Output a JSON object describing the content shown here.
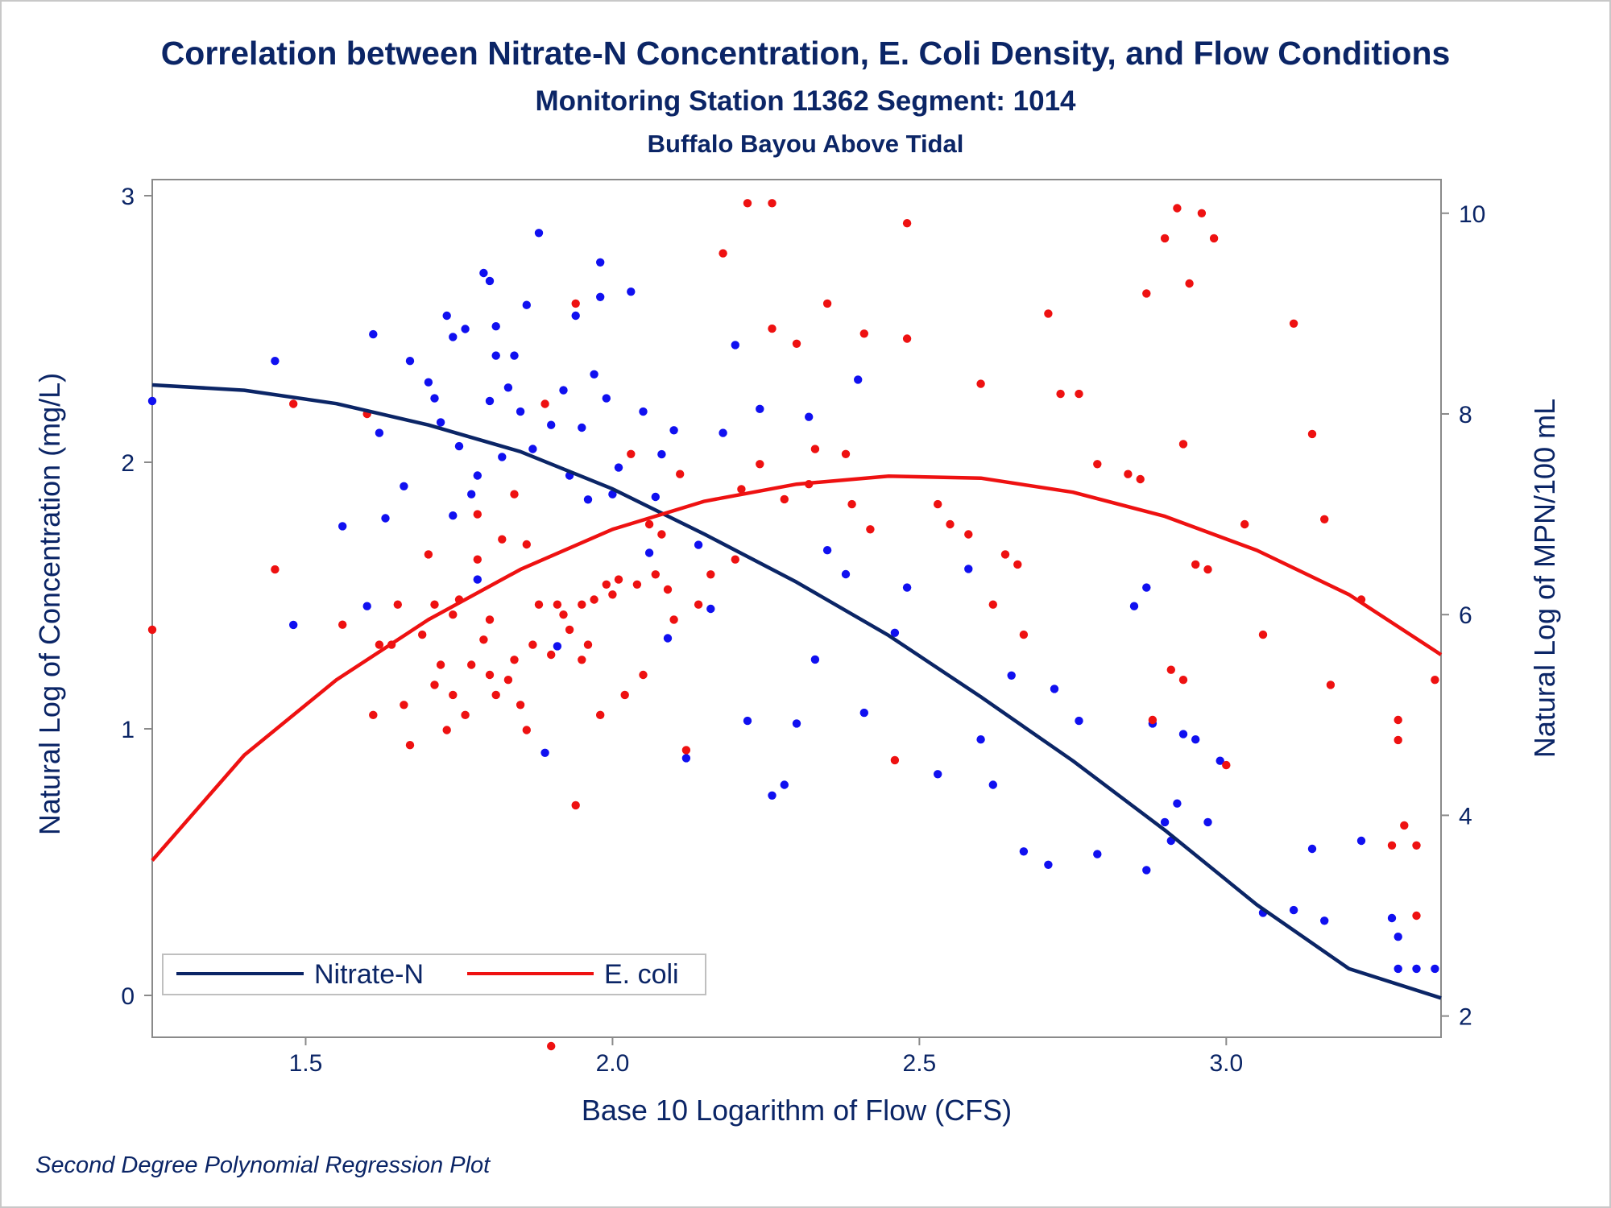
{
  "colors": {
    "nitrate": "#0b2566",
    "nitrate_points": "#1010f0",
    "ecoli": "#ee1111",
    "text": "#0b2566",
    "axis": "#8a8a8a"
  },
  "chart_data": {
    "type": "scatter",
    "title": "Correlation between Nitrate-N Concentration, E. Coli Density, and Flow Conditions",
    "subtitle": "Monitoring Station 11362 Segment: 1014",
    "subtitle2": "Buffalo Bayou Above Tidal",
    "footnote": "Second Degree Polynomial Regression Plot",
    "xlabel": "Base 10 Logarithm of Flow (CFS)",
    "ylabel": "Natural Log of Concentration (mg/L)",
    "y2label": "Natural Log of MPN/100 mL",
    "xlim": [
      1.25,
      3.35
    ],
    "ylim": [
      0,
      3
    ],
    "y2lim": [
      1.7,
      10.6
    ],
    "xticks": [
      "1.5",
      "2.0",
      "2.5",
      "3.0"
    ],
    "yticks": [
      "0",
      "1",
      "2",
      "3"
    ],
    "y2ticks": [
      "2",
      "4",
      "6",
      "8",
      "10"
    ],
    "grid": false,
    "legend_position": "bottom-left",
    "series": [
      {
        "name": "Nitrate-N",
        "axis": "left",
        "fit": [
          [
            1.25,
            2.29
          ],
          [
            1.4,
            2.27
          ],
          [
            1.55,
            2.22
          ],
          [
            1.7,
            2.14
          ],
          [
            1.85,
            2.04
          ],
          [
            2.0,
            1.9
          ],
          [
            2.15,
            1.73
          ],
          [
            2.3,
            1.55
          ],
          [
            2.45,
            1.35
          ],
          [
            2.6,
            1.12
          ],
          [
            2.75,
            0.88
          ],
          [
            2.9,
            0.62
          ],
          [
            3.05,
            0.34
          ],
          [
            3.2,
            0.1
          ],
          [
            3.35,
            -0.01
          ]
        ],
        "points": [
          [
            1.25,
            2.23
          ],
          [
            1.45,
            2.38
          ],
          [
            1.48,
            1.39
          ],
          [
            1.56,
            1.76
          ],
          [
            1.6,
            1.46
          ],
          [
            1.61,
            2.48
          ],
          [
            1.62,
            2.11
          ],
          [
            1.63,
            1.79
          ],
          [
            1.66,
            1.91
          ],
          [
            1.67,
            2.38
          ],
          [
            1.7,
            2.3
          ],
          [
            1.71,
            2.24
          ],
          [
            1.72,
            2.15
          ],
          [
            1.73,
            2.55
          ],
          [
            1.74,
            1.8
          ],
          [
            1.74,
            2.47
          ],
          [
            1.75,
            2.06
          ],
          [
            1.76,
            2.5
          ],
          [
            1.77,
            1.88
          ],
          [
            1.78,
            1.56
          ],
          [
            1.78,
            1.95
          ],
          [
            1.79,
            2.71
          ],
          [
            1.8,
            2.68
          ],
          [
            1.8,
            2.23
          ],
          [
            1.81,
            2.51
          ],
          [
            1.81,
            2.4
          ],
          [
            1.82,
            2.02
          ],
          [
            1.83,
            2.28
          ],
          [
            1.84,
            2.4
          ],
          [
            1.85,
            2.19
          ],
          [
            1.86,
            2.59
          ],
          [
            1.87,
            2.05
          ],
          [
            1.88,
            2.86
          ],
          [
            1.89,
            0.91
          ],
          [
            1.9,
            2.14
          ],
          [
            1.91,
            1.31
          ],
          [
            1.92,
            2.27
          ],
          [
            1.93,
            1.95
          ],
          [
            1.94,
            2.55
          ],
          [
            1.95,
            2.13
          ],
          [
            1.96,
            1.86
          ],
          [
            1.97,
            2.33
          ],
          [
            1.98,
            2.75
          ],
          [
            1.98,
            2.62
          ],
          [
            1.99,
            2.24
          ],
          [
            2.0,
            1.88
          ],
          [
            2.01,
            1.98
          ],
          [
            2.03,
            2.64
          ],
          [
            2.05,
            2.19
          ],
          [
            2.06,
            1.66
          ],
          [
            2.07,
            1.87
          ],
          [
            2.08,
            2.03
          ],
          [
            2.09,
            1.34
          ],
          [
            2.1,
            2.12
          ],
          [
            2.12,
            0.89
          ],
          [
            2.14,
            1.69
          ],
          [
            2.16,
            1.45
          ],
          [
            2.18,
            2.11
          ],
          [
            2.2,
            2.44
          ],
          [
            2.22,
            1.03
          ],
          [
            2.24,
            2.2
          ],
          [
            2.26,
            0.75
          ],
          [
            2.28,
            0.79
          ],
          [
            2.3,
            1.02
          ],
          [
            2.32,
            2.17
          ],
          [
            2.33,
            1.26
          ],
          [
            2.35,
            1.67
          ],
          [
            2.38,
            1.58
          ],
          [
            2.41,
            1.06
          ],
          [
            2.4,
            2.31
          ],
          [
            2.46,
            1.36
          ],
          [
            2.48,
            1.53
          ],
          [
            2.53,
            0.83
          ],
          [
            2.58,
            1.6
          ],
          [
            2.6,
            0.96
          ],
          [
            2.62,
            0.79
          ],
          [
            2.65,
            1.2
          ],
          [
            2.67,
            0.54
          ],
          [
            2.71,
            0.49
          ],
          [
            2.72,
            1.15
          ],
          [
            2.76,
            1.03
          ],
          [
            2.79,
            0.53
          ],
          [
            2.85,
            1.46
          ],
          [
            2.87,
            1.53
          ],
          [
            2.87,
            0.47
          ],
          [
            2.88,
            1.02
          ],
          [
            2.9,
            0.65
          ],
          [
            2.91,
            0.58
          ],
          [
            2.92,
            0.72
          ],
          [
            2.93,
            0.98
          ],
          [
            2.95,
            0.96
          ],
          [
            2.97,
            0.65
          ],
          [
            2.99,
            0.88
          ],
          [
            3.06,
            0.31
          ],
          [
            3.11,
            0.32
          ],
          [
            3.14,
            0.55
          ],
          [
            3.16,
            0.28
          ],
          [
            3.22,
            0.58
          ],
          [
            3.27,
            0.29
          ],
          [
            3.28,
            0.22
          ],
          [
            3.28,
            0.1
          ],
          [
            3.31,
            0.1
          ],
          [
            3.34,
            0.1
          ]
        ]
      },
      {
        "name": "E. coli",
        "axis": "right",
        "fit": [
          [
            1.25,
            3.55
          ],
          [
            1.4,
            4.6
          ],
          [
            1.55,
            5.35
          ],
          [
            1.7,
            5.95
          ],
          [
            1.85,
            6.45
          ],
          [
            2.0,
            6.85
          ],
          [
            2.15,
            7.13
          ],
          [
            2.3,
            7.3
          ],
          [
            2.45,
            7.38
          ],
          [
            2.6,
            7.36
          ],
          [
            2.75,
            7.22
          ],
          [
            2.9,
            6.98
          ],
          [
            3.05,
            6.64
          ],
          [
            3.2,
            6.2
          ],
          [
            3.35,
            5.6
          ]
        ],
        "points": [
          [
            1.25,
            5.85
          ],
          [
            1.45,
            6.45
          ],
          [
            1.48,
            8.1
          ],
          [
            1.56,
            5.9
          ],
          [
            1.6,
            8.0
          ],
          [
            1.61,
            5.0
          ],
          [
            1.62,
            5.7
          ],
          [
            1.64,
            5.7
          ],
          [
            1.65,
            6.1
          ],
          [
            1.66,
            5.1
          ],
          [
            1.67,
            4.7
          ],
          [
            1.69,
            5.8
          ],
          [
            1.7,
            6.6
          ],
          [
            1.71,
            6.1
          ],
          [
            1.71,
            5.3
          ],
          [
            1.72,
            5.5
          ],
          [
            1.73,
            4.85
          ],
          [
            1.74,
            6.0
          ],
          [
            1.74,
            5.2
          ],
          [
            1.75,
            6.15
          ],
          [
            1.76,
            5.0
          ],
          [
            1.77,
            5.5
          ],
          [
            1.78,
            6.55
          ],
          [
            1.78,
            7.0
          ],
          [
            1.79,
            5.75
          ],
          [
            1.8,
            5.95
          ],
          [
            1.8,
            5.4
          ],
          [
            1.81,
            5.2
          ],
          [
            1.82,
            6.75
          ],
          [
            1.83,
            5.35
          ],
          [
            1.84,
            5.55
          ],
          [
            1.84,
            7.2
          ],
          [
            1.85,
            5.1
          ],
          [
            1.86,
            4.85
          ],
          [
            1.86,
            6.7
          ],
          [
            1.87,
            5.7
          ],
          [
            1.88,
            6.1
          ],
          [
            1.89,
            8.1
          ],
          [
            1.9,
            5.6
          ],
          [
            1.91,
            6.1
          ],
          [
            1.92,
            6.0
          ],
          [
            1.93,
            5.85
          ],
          [
            1.94,
            4.1
          ],
          [
            1.94,
            9.1
          ],
          [
            1.95,
            5.55
          ],
          [
            1.95,
            6.1
          ],
          [
            1.96,
            5.7
          ],
          [
            1.97,
            6.15
          ],
          [
            1.98,
            5.0
          ],
          [
            1.99,
            6.3
          ],
          [
            2.0,
            6.2
          ],
          [
            2.01,
            6.35
          ],
          [
            2.02,
            5.2
          ],
          [
            2.03,
            7.6
          ],
          [
            2.04,
            6.3
          ],
          [
            2.05,
            5.4
          ],
          [
            2.06,
            6.9
          ],
          [
            2.07,
            6.4
          ],
          [
            2.08,
            6.8
          ],
          [
            2.09,
            6.25
          ],
          [
            2.1,
            5.95
          ],
          [
            2.11,
            7.4
          ],
          [
            2.12,
            4.65
          ],
          [
            2.14,
            6.1
          ],
          [
            2.16,
            6.4
          ],
          [
            2.18,
            9.6
          ],
          [
            2.2,
            6.55
          ],
          [
            2.21,
            7.25
          ],
          [
            2.22,
            10.1
          ],
          [
            2.24,
            7.5
          ],
          [
            2.26,
            10.1
          ],
          [
            2.26,
            8.85
          ],
          [
            2.28,
            7.15
          ],
          [
            2.3,
            8.7
          ],
          [
            2.32,
            7.3
          ],
          [
            2.33,
            7.65
          ],
          [
            2.35,
            9.1
          ],
          [
            2.38,
            7.6
          ],
          [
            2.39,
            7.1
          ],
          [
            2.41,
            8.8
          ],
          [
            2.42,
            6.85
          ],
          [
            2.46,
            4.55
          ],
          [
            2.48,
            9.9
          ],
          [
            2.48,
            8.75
          ],
          [
            2.53,
            7.1
          ],
          [
            2.55,
            6.9
          ],
          [
            2.58,
            6.8
          ],
          [
            2.6,
            8.3
          ],
          [
            2.62,
            6.1
          ],
          [
            2.64,
            6.6
          ],
          [
            2.66,
            6.5
          ],
          [
            2.67,
            5.8
          ],
          [
            2.71,
            9.0
          ],
          [
            2.73,
            8.2
          ],
          [
            2.76,
            8.2
          ],
          [
            2.79,
            7.5
          ],
          [
            2.84,
            7.4
          ],
          [
            2.86,
            7.35
          ],
          [
            2.87,
            9.2
          ],
          [
            2.88,
            4.95
          ],
          [
            2.9,
            9.75
          ],
          [
            2.91,
            5.45
          ],
          [
            2.92,
            10.05
          ],
          [
            2.93,
            7.7
          ],
          [
            2.93,
            5.35
          ],
          [
            2.94,
            9.3
          ],
          [
            2.95,
            6.5
          ],
          [
            2.96,
            10.0
          ],
          [
            2.97,
            6.45
          ],
          [
            2.98,
            9.75
          ],
          [
            3.0,
            4.5
          ],
          [
            3.03,
            6.9
          ],
          [
            3.06,
            5.8
          ],
          [
            3.11,
            8.9
          ],
          [
            3.14,
            7.8
          ],
          [
            3.16,
            6.95
          ],
          [
            3.17,
            5.3
          ],
          [
            3.22,
            6.15
          ],
          [
            3.27,
            3.7
          ],
          [
            3.28,
            4.75
          ],
          [
            3.28,
            4.95
          ],
          [
            3.29,
            3.9
          ],
          [
            3.31,
            3.7
          ],
          [
            3.31,
            3.0
          ],
          [
            3.34,
            5.35
          ],
          [
            1.9,
            1.7
          ]
        ]
      }
    ]
  }
}
